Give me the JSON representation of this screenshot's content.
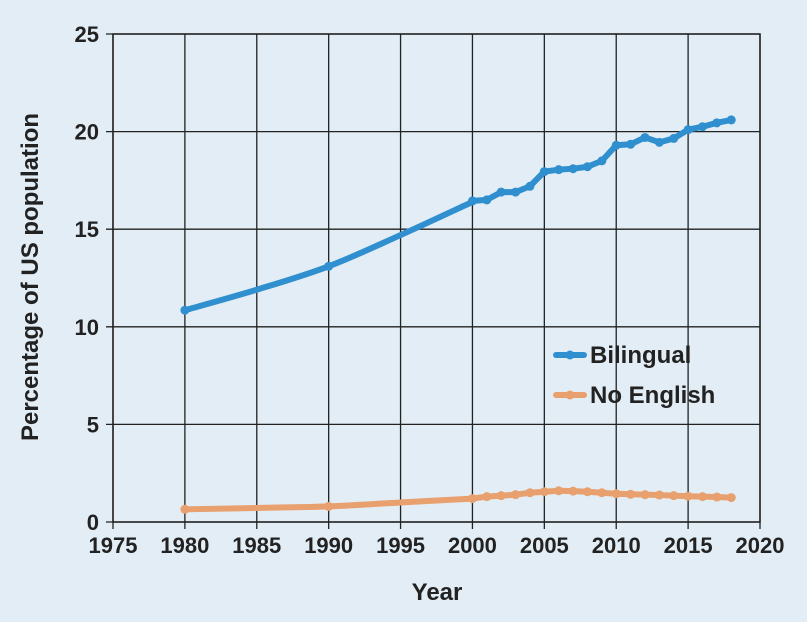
{
  "chart_data": {
    "type": "line",
    "title": "",
    "xlabel": "Year",
    "ylabel": "Percentage of US population",
    "xlim": [
      1975,
      2020
    ],
    "ylim": [
      0,
      25
    ],
    "xticks": [
      1975,
      1980,
      1985,
      1990,
      1995,
      2000,
      2005,
      2010,
      2015,
      2020
    ],
    "yticks": [
      0,
      5,
      10,
      15,
      20,
      25
    ],
    "grid": true,
    "legend_position": "center-right",
    "colors": {
      "background": "#e3edf5",
      "grid": "#222222"
    },
    "series": [
      {
        "name": "Bilingual",
        "color": "#2f8fcf",
        "curve": [
          [
            1980,
            10.85
          ],
          [
            1985,
            11.9
          ],
          [
            1990,
            13.1
          ],
          [
            1995,
            14.7
          ],
          [
            2000,
            16.4
          ]
        ],
        "markers": [
          [
            1980,
            10.85
          ],
          [
            1990,
            13.1
          ],
          [
            2000,
            16.45
          ],
          [
            2001,
            16.5
          ],
          [
            2002,
            16.9
          ],
          [
            2003,
            16.9
          ],
          [
            2004,
            17.2
          ],
          [
            2005,
            17.95
          ],
          [
            2006,
            18.05
          ],
          [
            2007,
            18.1
          ],
          [
            2008,
            18.2
          ],
          [
            2009,
            18.5
          ],
          [
            2010,
            19.3
          ],
          [
            2011,
            19.35
          ],
          [
            2012,
            19.7
          ],
          [
            2013,
            19.45
          ],
          [
            2014,
            19.65
          ],
          [
            2015,
            20.1
          ],
          [
            2016,
            20.25
          ],
          [
            2017,
            20.45
          ],
          [
            2018,
            20.6
          ]
        ]
      },
      {
        "name": "No English",
        "color": "#e8a06e",
        "curve": [
          [
            1980,
            0.65
          ],
          [
            1985,
            0.72
          ],
          [
            1990,
            0.8
          ],
          [
            1995,
            1.0
          ],
          [
            2000,
            1.2
          ]
        ],
        "markers": [
          [
            1980,
            0.65
          ],
          [
            1990,
            0.8
          ],
          [
            2000,
            1.2
          ],
          [
            2001,
            1.3
          ],
          [
            2002,
            1.35
          ],
          [
            2003,
            1.4
          ],
          [
            2004,
            1.5
          ],
          [
            2005,
            1.55
          ],
          [
            2006,
            1.6
          ],
          [
            2007,
            1.58
          ],
          [
            2008,
            1.55
          ],
          [
            2009,
            1.5
          ],
          [
            2010,
            1.45
          ],
          [
            2011,
            1.42
          ],
          [
            2012,
            1.4
          ],
          [
            2013,
            1.38
          ],
          [
            2014,
            1.35
          ],
          [
            2015,
            1.32
          ],
          [
            2016,
            1.3
          ],
          [
            2017,
            1.28
          ],
          [
            2018,
            1.25
          ]
        ]
      }
    ]
  }
}
